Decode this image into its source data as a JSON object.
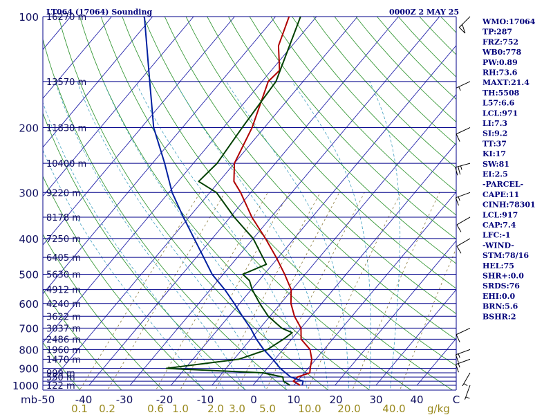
{
  "title_left": "LT064 (17064) Sounding",
  "title_right": "0000Z  2 MAY 25",
  "pressure_unit": "mb",
  "mixing_ratio_unit": "g/kg",
  "side_panel": [
    "WMO:17064",
    "TP:287",
    "FRZ:752",
    "WB0:778",
    "PW:0.89",
    "RH:73.6",
    "MAXT:21.4",
    "TH:5508",
    "L57:6.6",
    "LCL:971",
    "LI:7.3",
    "SI:9.2",
    "TT:37",
    "KI:17",
    "SW:81",
    "EI:2.5",
    "-PARCEL-",
    "CAPE:11",
    "CINH:78301",
    "LCL:917",
    "CAP:7.4",
    "LFC:-1",
    "-WIND-",
    "STM:78/16",
    "HEL:75",
    "SHR+:0.0",
    "SRDS:76",
    "EHI:0.0",
    "BRN:5.6",
    "BSHR:2"
  ],
  "colors": {
    "isobar": "#00008a",
    "isotherm": "#2222aa",
    "dry_adiabat": "#3a9a3a",
    "moist_adiabat": "#40a0c0",
    "mixing_ratio": "#8a7a3a",
    "temperature": "#b00000",
    "dewpoint": "#004000",
    "parcel": "#0020a0",
    "wind": "#000000"
  },
  "chart_data": {
    "type": "line",
    "chart_kind": "skew-T log-P sounding",
    "y_scale": "log",
    "ylim": [
      1000,
      100
    ],
    "xlim": [
      -50,
      50
    ],
    "pressure_ticks": [
      100,
      200,
      300,
      400,
      500,
      600,
      700,
      800,
      900,
      1000
    ],
    "temperature_ticks": [
      "-50",
      "-40",
      "-30",
      "-20",
      "-10",
      "0",
      "10",
      "20",
      "30",
      "40",
      "C"
    ],
    "mixing_ratio_labels": [
      "0.1",
      "0.2",
      "0.6",
      "1.0",
      "2.0",
      "3.0",
      "5.0",
      "10.0",
      "20.0",
      "40.0"
    ],
    "height_labels": [
      {
        "p": 1000,
        "label": "122 m"
      },
      {
        "p": 950,
        "label": "550 m"
      },
      {
        "p": 925,
        "label": "999 m"
      },
      {
        "p": 850,
        "label": "1470 m"
      },
      {
        "p": 800,
        "label": "1960 m"
      },
      {
        "p": 750,
        "label": "2486 m"
      },
      {
        "p": 700,
        "label": "3037 m"
      },
      {
        "p": 650,
        "label": "3622 m"
      },
      {
        "p": 600,
        "label": "4240 m"
      },
      {
        "p": 550,
        "label": "4912 m"
      },
      {
        "p": 500,
        "label": "5630 m"
      },
      {
        "p": 450,
        "label": "6405 m"
      },
      {
        "p": 400,
        "label": "7250 m"
      },
      {
        "p": 350,
        "label": "8178 m"
      },
      {
        "p": 300,
        "label": "9220 m"
      },
      {
        "p": 250,
        "label": "10400 m"
      },
      {
        "p": 200,
        "label": "11830 m"
      },
      {
        "p": 150,
        "label": "13570 m"
      },
      {
        "p": 100,
        "label": "16270 m"
      }
    ],
    "series": [
      {
        "key": "temperature",
        "points": [
          {
            "p": 1000,
            "t": 11.5
          },
          {
            "p": 975,
            "t": 9.0
          },
          {
            "p": 950,
            "t": 9.2
          },
          {
            "p": 925,
            "t": 11.3
          },
          {
            "p": 900,
            "t": 10.5
          },
          {
            "p": 850,
            "t": 9.0
          },
          {
            "p": 800,
            "t": 6.6
          },
          {
            "p": 750,
            "t": 2.3
          },
          {
            "p": 700,
            "t": 0.0
          },
          {
            "p": 650,
            "t": -4.0
          },
          {
            "p": 600,
            "t": -7.5
          },
          {
            "p": 550,
            "t": -10.3
          },
          {
            "p": 500,
            "t": -15.0
          },
          {
            "p": 450,
            "t": -20.5
          },
          {
            "p": 400,
            "t": -27.0
          },
          {
            "p": 350,
            "t": -34.7
          },
          {
            "p": 300,
            "t": -42.5
          },
          {
            "p": 280,
            "t": -46.4
          },
          {
            "p": 250,
            "t": -50.0
          },
          {
            "p": 200,
            "t": -53.0
          },
          {
            "p": 150,
            "t": -58.5
          },
          {
            "p": 140,
            "t": -58.0
          },
          {
            "p": 120,
            "t": -63.3
          },
          {
            "p": 100,
            "t": -66.7
          }
        ]
      },
      {
        "key": "dewpoint",
        "points": [
          {
            "p": 1000,
            "t": 9.0
          },
          {
            "p": 975,
            "t": 6.6
          },
          {
            "p": 950,
            "t": 5.6
          },
          {
            "p": 925,
            "t": -0.2
          },
          {
            "p": 900,
            "t": -24.6
          },
          {
            "p": 850,
            "t": -8.8
          },
          {
            "p": 800,
            "t": -3.8
          },
          {
            "p": 750,
            "t": -2.0
          },
          {
            "p": 720,
            "t": -1.2
          },
          {
            "p": 700,
            "t": -4.7
          },
          {
            "p": 650,
            "t": -10.4
          },
          {
            "p": 600,
            "t": -15.1
          },
          {
            "p": 550,
            "t": -19.8
          },
          {
            "p": 520,
            "t": -22.3
          },
          {
            "p": 500,
            "t": -25.2
          },
          {
            "p": 470,
            "t": -21.5
          },
          {
            "p": 400,
            "t": -30.0
          },
          {
            "p": 350,
            "t": -39.0
          },
          {
            "p": 300,
            "t": -48.4
          },
          {
            "p": 280,
            "t": -55.0
          },
          {
            "p": 250,
            "t": -54.2
          },
          {
            "p": 200,
            "t": -55.4
          },
          {
            "p": 150,
            "t": -56.6
          },
          {
            "p": 100,
            "t": -63.9
          }
        ]
      },
      {
        "key": "parcel",
        "points": [
          {
            "p": 1000,
            "t": 12.0
          },
          {
            "p": 975,
            "t": 11.4
          },
          {
            "p": 950,
            "t": 7.5
          },
          {
            "p": 900,
            "t": 3.2
          },
          {
            "p": 850,
            "t": -0.5
          },
          {
            "p": 800,
            "t": -4.7
          },
          {
            "p": 750,
            "t": -8.6
          },
          {
            "p": 700,
            "t": -12.3
          },
          {
            "p": 650,
            "t": -16.7
          },
          {
            "p": 600,
            "t": -21.3
          },
          {
            "p": 550,
            "t": -26.5
          },
          {
            "p": 500,
            "t": -32.7
          },
          {
            "p": 450,
            "t": -38.2
          },
          {
            "p": 400,
            "t": -44.4
          },
          {
            "p": 350,
            "t": -51.4
          },
          {
            "p": 300,
            "t": -59.2
          },
          {
            "p": 250,
            "t": -67.0
          },
          {
            "p": 200,
            "t": -77.0
          },
          {
            "p": 150,
            "t": -87.4
          },
          {
            "p": 100,
            "t": -102.0
          }
        ]
      }
    ],
    "wind_barbs": [
      {
        "p": 1000,
        "dir": 200,
        "spd": 5
      },
      {
        "p": 925,
        "dir": 210,
        "spd": 5
      },
      {
        "p": 850,
        "dir": 250,
        "spd": 15
      },
      {
        "p": 800,
        "dir": 250,
        "spd": 15
      },
      {
        "p": 700,
        "dir": 245,
        "spd": 10
      },
      {
        "p": 400,
        "dir": 240,
        "spd": 10
      },
      {
        "p": 350,
        "dir": 240,
        "spd": 10
      },
      {
        "p": 300,
        "dir": 250,
        "spd": 15
      },
      {
        "p": 250,
        "dir": 255,
        "spd": 25
      },
      {
        "p": 200,
        "dir": 245,
        "spd": 10
      },
      {
        "p": 150,
        "dir": 245,
        "spd": 5
      },
      {
        "p": 100,
        "dir": 225,
        "spd": 50
      }
    ]
  }
}
